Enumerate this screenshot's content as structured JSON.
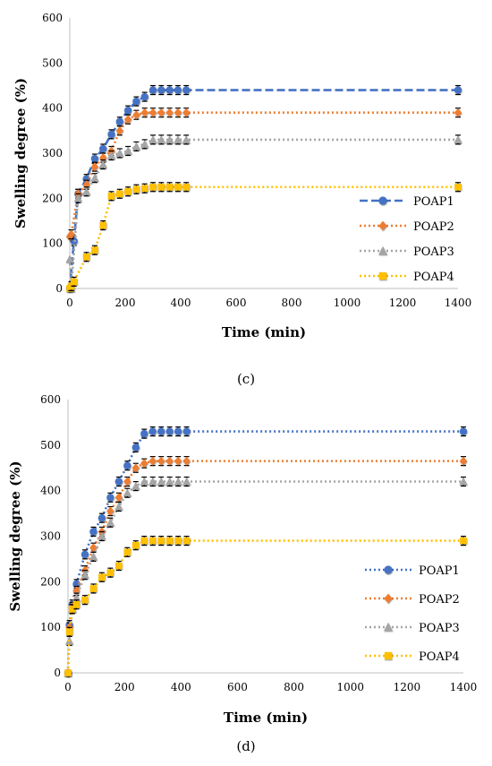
{
  "chart_data": [
    {
      "panel": "(c)",
      "type": "line",
      "xlabel": "Time (min)",
      "ylabel": "Swelling degree (%)",
      "xlim": [
        0,
        1400
      ],
      "ylim": [
        0,
        600
      ],
      "x_ticks": [
        "0",
        "200",
        "400",
        "600",
        "800",
        "1000",
        "1200",
        "1400"
      ],
      "y_ticks": [
        "0",
        "100",
        "200",
        "300",
        "400",
        "500",
        "600"
      ],
      "legend_position": "right",
      "series": [
        {
          "name": "POAP1",
          "color": "#4472C4",
          "line_style": "dashed",
          "marker": "circle",
          "x": [
            0,
            15,
            30,
            60,
            90,
            120,
            150,
            180,
            210,
            240,
            270,
            300,
            330,
            360,
            390,
            420,
            1400
          ],
          "y": [
            0,
            105,
            210,
            243,
            288,
            310,
            342,
            370,
            395,
            415,
            425,
            440,
            440,
            440,
            440,
            440,
            440
          ]
        },
        {
          "name": "POAP2",
          "color": "#ED7D31",
          "line_style": "dotted",
          "marker": "diamond",
          "x": [
            0,
            5,
            30,
            60,
            90,
            120,
            150,
            180,
            210,
            240,
            270,
            300,
            330,
            360,
            390,
            420,
            1400
          ],
          "y": [
            115,
            120,
            210,
            230,
            270,
            290,
            305,
            350,
            375,
            385,
            390,
            390,
            390,
            390,
            390,
            390,
            390
          ]
        },
        {
          "name": "POAP3",
          "color": "#A5A5A5",
          "line_style": "dotted",
          "marker": "triangle",
          "x": [
            0,
            5,
            30,
            60,
            90,
            120,
            150,
            180,
            210,
            240,
            270,
            300,
            330,
            360,
            390,
            420,
            1400
          ],
          "y": [
            65,
            0,
            200,
            215,
            245,
            275,
            295,
            300,
            305,
            315,
            320,
            330,
            330,
            330,
            330,
            330,
            330
          ]
        },
        {
          "name": "POAP4",
          "color": "#FFC000",
          "line_style": "dotted",
          "marker": "square",
          "x": [
            0,
            5,
            15,
            60,
            90,
            120,
            150,
            180,
            210,
            240,
            270,
            300,
            330,
            360,
            390,
            420,
            1400
          ],
          "y": [
            0,
            5,
            15,
            70,
            85,
            140,
            205,
            210,
            215,
            220,
            222,
            225,
            225,
            225,
            225,
            225,
            225
          ]
        }
      ]
    },
    {
      "panel": "(d)",
      "type": "line",
      "xlabel": "Time (min)",
      "ylabel": "Swelling degree (%)",
      "xlim": [
        0,
        1400
      ],
      "ylim": [
        0,
        600
      ],
      "x_ticks": [
        "0",
        "200",
        "400",
        "600",
        "800",
        "1000",
        "1200",
        "1400"
      ],
      "y_ticks": [
        "0",
        "100",
        "200",
        "300",
        "400",
        "500",
        "600"
      ],
      "legend_position": "right",
      "series": [
        {
          "name": "POAP1",
          "color": "#4472C4",
          "line_style": "dotted",
          "marker": "circle",
          "x": [
            0,
            5,
            15,
            30,
            60,
            90,
            120,
            150,
            180,
            210,
            240,
            270,
            300,
            330,
            360,
            390,
            420,
            1400
          ],
          "y": [
            0,
            105,
            150,
            195,
            260,
            310,
            340,
            385,
            420,
            455,
            495,
            525,
            530,
            530,
            530,
            530,
            530,
            530
          ]
        },
        {
          "name": "POAP2",
          "color": "#ED7D31",
          "line_style": "dotted",
          "marker": "diamond",
          "x": [
            0,
            5,
            15,
            30,
            60,
            90,
            120,
            150,
            180,
            210,
            240,
            270,
            300,
            330,
            360,
            390,
            420,
            1400
          ],
          "y": [
            0,
            100,
            145,
            180,
            225,
            275,
            310,
            355,
            385,
            420,
            450,
            460,
            465,
            465,
            465,
            465,
            465,
            465
          ]
        },
        {
          "name": "POAP3",
          "color": "#A5A5A5",
          "line_style": "dotted",
          "marker": "triangle",
          "x": [
            0,
            5,
            15,
            30,
            60,
            90,
            120,
            150,
            180,
            210,
            240,
            270,
            300,
            330,
            360,
            390,
            420,
            1400
          ],
          "y": [
            0,
            70,
            140,
            165,
            215,
            255,
            300,
            330,
            365,
            395,
            410,
            420,
            420,
            420,
            420,
            420,
            420,
            420
          ]
        },
        {
          "name": "POAP4",
          "color": "#FFC000",
          "line_style": "dotted",
          "marker": "square",
          "x": [
            0,
            5,
            15,
            30,
            60,
            90,
            120,
            150,
            180,
            210,
            240,
            270,
            300,
            330,
            360,
            390,
            420,
            1400
          ],
          "y": [
            0,
            90,
            140,
            150,
            160,
            185,
            210,
            220,
            235,
            265,
            280,
            290,
            290,
            290,
            290,
            290,
            290,
            290
          ]
        }
      ]
    }
  ]
}
